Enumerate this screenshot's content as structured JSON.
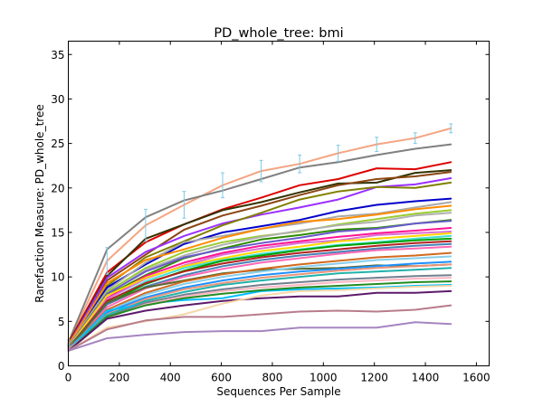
{
  "chart_data": {
    "type": "line",
    "title": "PD_whole_tree: bmi",
    "xlabel": "Sequences Per Sample",
    "ylabel": "Rarefaction Measure: PD_whole_tree",
    "xlim": [
      0,
      1650
    ],
    "ylim": [
      0,
      36.5
    ],
    "xticks": [
      0,
      200,
      400,
      600,
      800,
      1000,
      1200,
      1400,
      1600
    ],
    "yticks": [
      0,
      5,
      10,
      15,
      20,
      25,
      30,
      35
    ],
    "grid": false,
    "legend": "none",
    "x": [
      1,
      152,
      303,
      454,
      605,
      756,
      907,
      1058,
      1209,
      1360,
      1500
    ],
    "series": [
      {
        "color": "#f4a582",
        "values": [
          2.6,
          11.8,
          15.8,
          18.1,
          20.3,
          21.9,
          22.7,
          23.9,
          24.9,
          25.6,
          26.7
        ],
        "errors": [
          0.3,
          1.5,
          1.8,
          1.5,
          1.4,
          1.2,
          1.0,
          0.9,
          0.8,
          0.6,
          0.5
        ]
      },
      {
        "color": "#808080",
        "values": [
          2.7,
          13.1,
          16.7,
          18.6,
          19.7,
          21.0,
          22.3,
          22.9,
          23.7,
          24.4,
          24.9
        ]
      },
      {
        "color": "#dd0000",
        "values": [
          2.6,
          10.5,
          13.9,
          15.9,
          17.6,
          18.9,
          20.3,
          21.0,
          22.2,
          22.1,
          22.9
        ]
      },
      {
        "color": "#333300",
        "values": [
          2.5,
          10.1,
          14.3,
          15.9,
          17.5,
          18.4,
          19.5,
          20.5,
          20.6,
          21.7,
          22.0
        ]
      },
      {
        "color": "#8b4513",
        "values": [
          2.5,
          9.6,
          12.5,
          15.3,
          16.9,
          18.0,
          19.2,
          20.3,
          21.0,
          21.3,
          21.8
        ]
      },
      {
        "color": "#9b30ff",
        "values": [
          2.4,
          9.9,
          12.8,
          14.6,
          16.0,
          17.0,
          17.8,
          18.7,
          20.1,
          20.4,
          21.1
        ]
      },
      {
        "color": "#808000",
        "values": [
          2.3,
          9.0,
          12.2,
          14.0,
          15.8,
          17.2,
          18.7,
          19.6,
          20.1,
          20.0,
          20.6
        ]
      },
      {
        "color": "#0000cc",
        "values": [
          2.3,
          8.8,
          11.4,
          13.7,
          15.0,
          15.7,
          16.4,
          17.4,
          18.1,
          18.5,
          18.8
        ]
      },
      {
        "color": "#a9a9a9",
        "values": [
          2.3,
          8.5,
          11.6,
          13.9,
          14.6,
          15.4,
          16.0,
          16.8,
          17.1,
          17.8,
          18.4
        ]
      },
      {
        "color": "#ff8c00",
        "values": [
          2.4,
          9.3,
          11.9,
          13.1,
          14.4,
          15.4,
          16.2,
          16.5,
          17.0,
          17.6,
          18.0
        ]
      },
      {
        "color": "#9acd32",
        "values": [
          2.2,
          8.3,
          11.0,
          12.8,
          13.9,
          14.6,
          15.1,
          15.9,
          16.5,
          17.1,
          17.5
        ]
      },
      {
        "color": "#b0b0b0",
        "values": [
          2.3,
          8.0,
          10.8,
          12.4,
          13.6,
          14.5,
          15.2,
          15.8,
          16.2,
          16.9,
          17.2
        ]
      },
      {
        "color": "#2e8b00",
        "values": [
          2.2,
          7.9,
          10.2,
          12.1,
          13.2,
          14.2,
          14.7,
          15.3,
          15.5,
          16.0,
          16.4
        ]
      },
      {
        "color": "#6a5acd",
        "values": [
          2.2,
          8.1,
          10.6,
          12.2,
          13.1,
          13.8,
          14.4,
          15.1,
          15.4,
          16.0,
          16.3
        ]
      },
      {
        "color": "#ff1493",
        "values": [
          2.1,
          7.6,
          10.1,
          11.6,
          12.7,
          13.5,
          14.0,
          14.5,
          14.9,
          15.2,
          15.5
        ]
      },
      {
        "color": "#da70d6",
        "values": [
          2.2,
          7.5,
          9.8,
          11.3,
          12.5,
          13.2,
          13.8,
          14.1,
          14.7,
          14.9,
          15.1
        ]
      },
      {
        "color": "#ffd700",
        "values": [
          2.1,
          7.9,
          9.9,
          11.2,
          12.1,
          12.9,
          13.4,
          14.0,
          14.3,
          14.6,
          14.9
        ]
      },
      {
        "color": "#40e0d0",
        "values": [
          2.1,
          7.2,
          9.5,
          11.0,
          11.9,
          12.6,
          13.1,
          13.6,
          13.9,
          14.3,
          14.6
        ]
      },
      {
        "color": "#00a000",
        "values": [
          2.1,
          7.0,
          9.2,
          10.7,
          11.8,
          12.4,
          13.0,
          13.5,
          13.8,
          14.1,
          14.3
        ]
      },
      {
        "color": "#b22222",
        "values": [
          2.0,
          7.3,
          9.3,
          10.6,
          11.5,
          12.2,
          12.7,
          13.1,
          13.5,
          13.8,
          14.0
        ]
      },
      {
        "color": "#4682b4",
        "values": [
          2.0,
          6.9,
          8.9,
          10.2,
          11.2,
          11.9,
          12.4,
          12.8,
          13.2,
          13.5,
          13.7
        ]
      },
      {
        "color": "#ff69b4",
        "values": [
          2.0,
          6.6,
          8.7,
          10.0,
          10.9,
          11.6,
          12.1,
          12.6,
          13.0,
          13.2,
          13.4
        ]
      },
      {
        "color": "#556b2f",
        "values": [
          1.9,
          7.1,
          8.8,
          9.6,
          10.4,
          10.8,
          10.9,
          11.0,
          11.3,
          11.2,
          11.4
        ]
      },
      {
        "color": "#d2691e",
        "values": [
          1.9,
          6.3,
          8.2,
          9.5,
          10.3,
          10.9,
          11.4,
          11.8,
          12.2,
          12.4,
          12.7
        ]
      },
      {
        "color": "#87ceeb",
        "values": [
          1.9,
          6.1,
          8.0,
          9.2,
          10.0,
          10.6,
          11.1,
          11.5,
          11.9,
          12.1,
          12.3
        ]
      },
      {
        "color": "#1e90ff",
        "values": [
          1.9,
          6.0,
          7.7,
          8.8,
          9.6,
          10.2,
          10.6,
          10.9,
          11.2,
          11.5,
          11.7
        ]
      },
      {
        "color": "#e9967a",
        "values": [
          1.9,
          5.8,
          7.5,
          8.6,
          9.3,
          9.9,
          10.3,
          10.7,
          11.0,
          11.2,
          11.4
        ]
      },
      {
        "color": "#20b2aa",
        "values": [
          1.8,
          5.7,
          7.3,
          8.3,
          9.1,
          9.6,
          10.0,
          10.4,
          10.6,
          10.8,
          11.0
        ]
      },
      {
        "color": "#00bfff",
        "values": [
          1.8,
          6.2,
          7.0,
          7.4,
          7.6,
          8.4,
          8.6,
          8.7,
          8.8,
          9.0,
          9.1
        ]
      },
      {
        "color": "#708090",
        "values": [
          1.8,
          5.5,
          7.1,
          8.0,
          8.6,
          9.1,
          9.4,
          9.7,
          9.9,
          10.1,
          10.2
        ]
      },
      {
        "color": "#ffb6c1",
        "values": [
          1.8,
          5.4,
          6.9,
          7.8,
          8.4,
          8.8,
          9.1,
          9.4,
          9.6,
          9.8,
          9.9
        ]
      },
      {
        "color": "#228b22",
        "values": [
          1.7,
          5.5,
          6.8,
          7.6,
          8.1,
          8.5,
          8.8,
          9.0,
          9.2,
          9.4,
          9.5
        ]
      },
      {
        "color": "#5d1a6b",
        "values": [
          1.7,
          5.3,
          6.2,
          6.8,
          7.3,
          7.6,
          7.8,
          7.8,
          8.2,
          8.2,
          8.4
        ]
      },
      {
        "color": "#f5d7a8",
        "values": [
          1.7,
          4.3,
          5.0,
          5.8,
          7.0,
          7.9,
          8.4,
          8.5,
          8.7,
          8.9,
          9.0
        ]
      },
      {
        "color": "#b87c8c",
        "values": [
          1.7,
          4.1,
          5.1,
          5.5,
          5.5,
          5.8,
          6.1,
          6.2,
          6.1,
          6.3,
          6.8
        ]
      },
      {
        "color": "#a585c0",
        "values": [
          1.7,
          3.1,
          3.5,
          3.8,
          3.9,
          3.9,
          4.3,
          4.3,
          4.3,
          4.9,
          4.7
        ]
      }
    ]
  }
}
